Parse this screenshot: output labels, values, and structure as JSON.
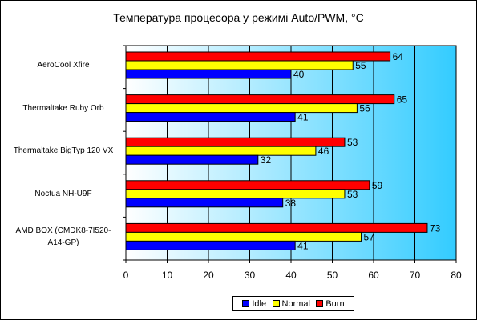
{
  "chart_data": {
    "type": "bar",
    "orientation": "horizontal",
    "title": "Температура процесора у режимі Auto/PWM, °C",
    "categories": [
      "AeroCool Xfire",
      "Thermaltake Ruby Orb",
      "Thermaltake BigTyp 120 VX",
      "Noctua NH-U9F",
      "AMD BOX (CMDK8-7I520-A14-GP)"
    ],
    "category_lines": [
      [
        "AeroCool Xfire"
      ],
      [
        "Thermaltake Ruby Orb"
      ],
      [
        "Thermaltake BigTyp 120 VX"
      ],
      [
        "Noctua NH-U9F"
      ],
      [
        "AMD BOX (CMDK8-7I520-",
        "A14-GP)"
      ]
    ],
    "series": [
      {
        "name": "Idle",
        "color": "#0000ff",
        "values": [
          40,
          41,
          32,
          38,
          41
        ]
      },
      {
        "name": "Normal",
        "color": "#ffff00",
        "values": [
          55,
          56,
          46,
          53,
          57
        ]
      },
      {
        "name": "Burn",
        "color": "#ff0000",
        "values": [
          64,
          65,
          53,
          59,
          73
        ]
      }
    ],
    "xlim": [
      0,
      80
    ],
    "xticks": [
      0,
      10,
      20,
      30,
      40,
      50,
      60,
      70,
      80
    ],
    "xticklabels": [
      "0",
      "10",
      "20",
      "30",
      "40",
      "50",
      "60",
      "70",
      "80"
    ],
    "legend_position": "bottom",
    "grid": true,
    "plot_background": "gradient white to light blue"
  }
}
